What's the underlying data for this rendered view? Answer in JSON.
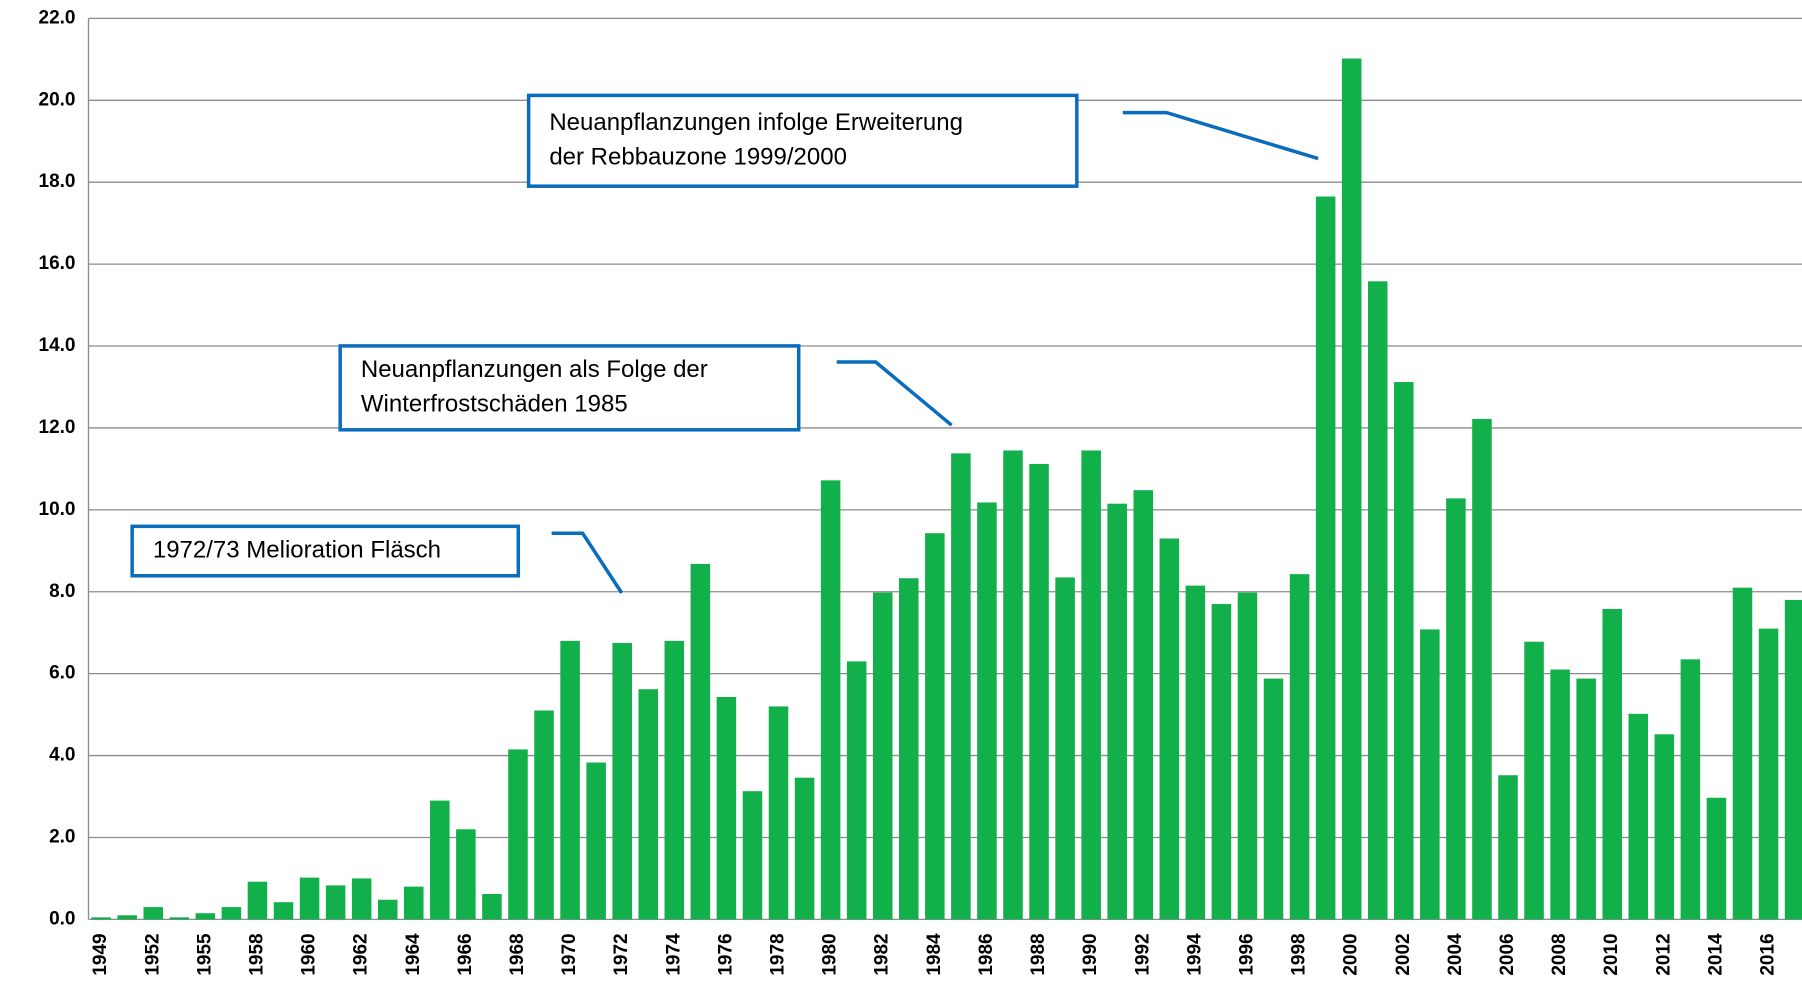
{
  "chart_data": {
    "type": "bar",
    "color": "#12b04a",
    "grid": true,
    "categories": [
      "1949",
      null,
      "1952",
      null,
      "1955",
      null,
      "1958",
      null,
      "1960",
      null,
      "1962",
      null,
      "1964",
      null,
      "1966",
      null,
      "1968",
      null,
      "1970",
      null,
      "1972",
      null,
      "1974",
      null,
      "1976",
      null,
      "1978",
      null,
      "1980",
      null,
      "1982",
      null,
      "1984",
      null,
      "1986",
      null,
      "1988",
      null,
      "1990",
      null,
      "1992",
      null,
      "1994",
      null,
      "1996",
      null,
      "1998",
      null,
      "2000",
      null,
      "2002",
      null,
      "2004",
      null,
      "2006",
      null,
      "2008",
      null,
      "2010",
      null,
      "2012",
      null,
      "2014",
      null,
      "2016",
      null
    ],
    "values": [
      0.05,
      0.1,
      0.3,
      0.05,
      0.15,
      0.3,
      0.92,
      0.42,
      1.02,
      0.83,
      1.0,
      0.48,
      0.8,
      2.9,
      2.2,
      0.62,
      4.15,
      5.1,
      6.8,
      3.83,
      6.75,
      5.62,
      6.8,
      8.68,
      5.43,
      3.13,
      5.2,
      3.46,
      10.72,
      6.3,
      7.98,
      8.33,
      9.43,
      11.38,
      10.18,
      11.45,
      11.12,
      8.35,
      11.45,
      10.15,
      10.48,
      9.3,
      8.15,
      7.7,
      7.98,
      5.88,
      8.43,
      17.65,
      21.02,
      15.58,
      13.12,
      7.08,
      10.28,
      12.22,
      3.52,
      6.78,
      6.1,
      5.88,
      7.58,
      5.02,
      4.52,
      6.35,
      2.97,
      8.1,
      7.1,
      7.8
    ],
    "ylim": [
      0,
      22
    ],
    "yticks": [
      {
        "value": 0,
        "label": "0.0"
      },
      {
        "value": 2,
        "label": "2.0"
      },
      {
        "value": 4,
        "label": "4.0"
      },
      {
        "value": 6,
        "label": "6.0"
      },
      {
        "value": 8,
        "label": "8.0"
      },
      {
        "value": 10,
        "label": "10.0"
      },
      {
        "value": 12,
        "label": "12.0"
      },
      {
        "value": 14,
        "label": "14.0"
      },
      {
        "value": 16,
        "label": "16.0"
      },
      {
        "value": 18,
        "label": "18.0"
      },
      {
        "value": 20,
        "label": "20.0"
      },
      {
        "value": 22,
        "label": "22.0"
      }
    ],
    "annotations": [
      {
        "lines": [
          "Neuanpflanzungen infolge Erweiterung",
          "der Rebbauzone 1999/2000"
        ]
      },
      {
        "lines": [
          "Neuanpflanzungen als Folge der",
          "Winterfrostschäden 1985"
        ]
      },
      {
        "lines": [
          "1972/73 Melioration Fläsch"
        ]
      }
    ]
  }
}
